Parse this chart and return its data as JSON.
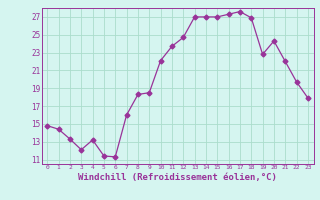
{
  "x": [
    0,
    1,
    2,
    3,
    4,
    5,
    6,
    7,
    8,
    9,
    10,
    11,
    12,
    13,
    14,
    15,
    16,
    17,
    18,
    19,
    20,
    21,
    22,
    23
  ],
  "y": [
    14.8,
    14.4,
    13.3,
    12.1,
    13.2,
    11.4,
    11.3,
    16.0,
    18.3,
    18.5,
    22.1,
    23.7,
    24.7,
    27.0,
    27.0,
    27.0,
    27.3,
    27.6,
    26.9,
    22.8,
    24.3,
    22.0,
    19.7,
    17.9
  ],
  "line_color": "#993399",
  "marker": "D",
  "marker_size": 2.5,
  "bg_color": "#d5f5f0",
  "grid_color": "#aaddcc",
  "xlabel": "Windchill (Refroidissement éolien,°C)",
  "xlabel_fontsize": 6.5,
  "ylabel_ticks": [
    11,
    13,
    15,
    17,
    19,
    21,
    23,
    25,
    27
  ],
  "xtick_labels": [
    "0",
    "1",
    "2",
    "3",
    "4",
    "5",
    "6",
    "7",
    "8",
    "9",
    "10",
    "11",
    "12",
    "13",
    "14",
    "15",
    "16",
    "17",
    "18",
    "19",
    "20",
    "21",
    "22",
    "23"
  ],
  "ylim": [
    10.5,
    28.0
  ],
  "xlim": [
    -0.5,
    23.5
  ],
  "tick_color": "#993399",
  "label_color": "#993399"
}
